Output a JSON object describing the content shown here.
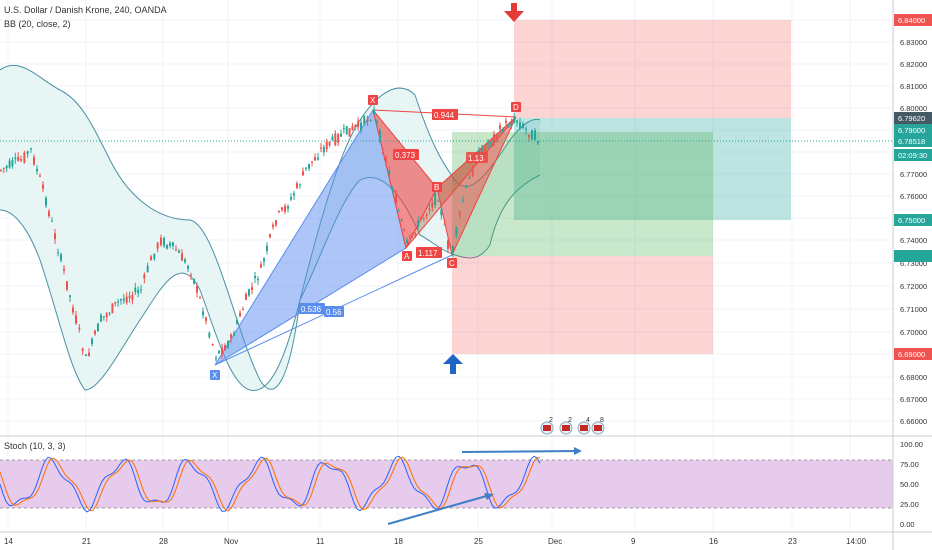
{
  "header": {
    "symbol_title": "U.S. Dollar / Danish Krone, 240, OANDA",
    "bb_indicator": "BB (20, close, 2)",
    "stoch_indicator": "Stoch (10, 3, 3)"
  },
  "price_axis": {
    "ticks": [
      "6.84000",
      "6.83000",
      "6.82000",
      "6.81000",
      "6.80000",
      "6.79000",
      "6.78000",
      "6.77000",
      "6.76000",
      "6.75000",
      "6.74000",
      "6.73000",
      "6.72000",
      "6.71000",
      "6.70000",
      "6.69000",
      "6.68000",
      "6.67000",
      "6.66000"
    ],
    "badges": [
      {
        "label": "6.84000",
        "color": "#ef5350"
      },
      {
        "label": "6.79620",
        "color": "#455a64"
      },
      {
        "label": "6.79000",
        "color": "#26a69a"
      },
      {
        "label": "6.78518",
        "color": "#26a69a"
      },
      {
        "label": "02:09:30",
        "color": "#26a69a"
      },
      {
        "label": "6.75000",
        "color": "#26a69a"
      },
      {
        "label": "",
        "color": "#26a69a"
      },
      {
        "label": "6.69000",
        "color": "#ef5350"
      }
    ]
  },
  "stoch_axis": {
    "ticks": [
      "100.00",
      "75.00",
      "50.00",
      "25.00",
      "0.00"
    ]
  },
  "time_axis": {
    "ticks": [
      "14",
      "21",
      "28",
      "Nov",
      "11",
      "18",
      "25",
      "Dec",
      "9",
      "16",
      "23",
      "14:00"
    ]
  },
  "pattern": {
    "points": [
      "X",
      "A",
      "B",
      "C",
      "D",
      "X"
    ],
    "ratios": [
      "0.944",
      "0.373",
      "1.117",
      "0.536",
      "0.56",
      "1.13"
    ]
  },
  "event_badges": [
    "2",
    "2",
    "4",
    "8"
  ],
  "colors": {
    "bull": "#26a69a",
    "bear": "#ef5350",
    "pattern_blue": "#5b8def",
    "pattern_red": "#ef4444",
    "stoch_band": "#e1bee7",
    "bb_fill": "#e8f5f5"
  },
  "icons": [
    "arrow-down-icon",
    "arrow-up-icon",
    "flag-icon"
  ]
}
